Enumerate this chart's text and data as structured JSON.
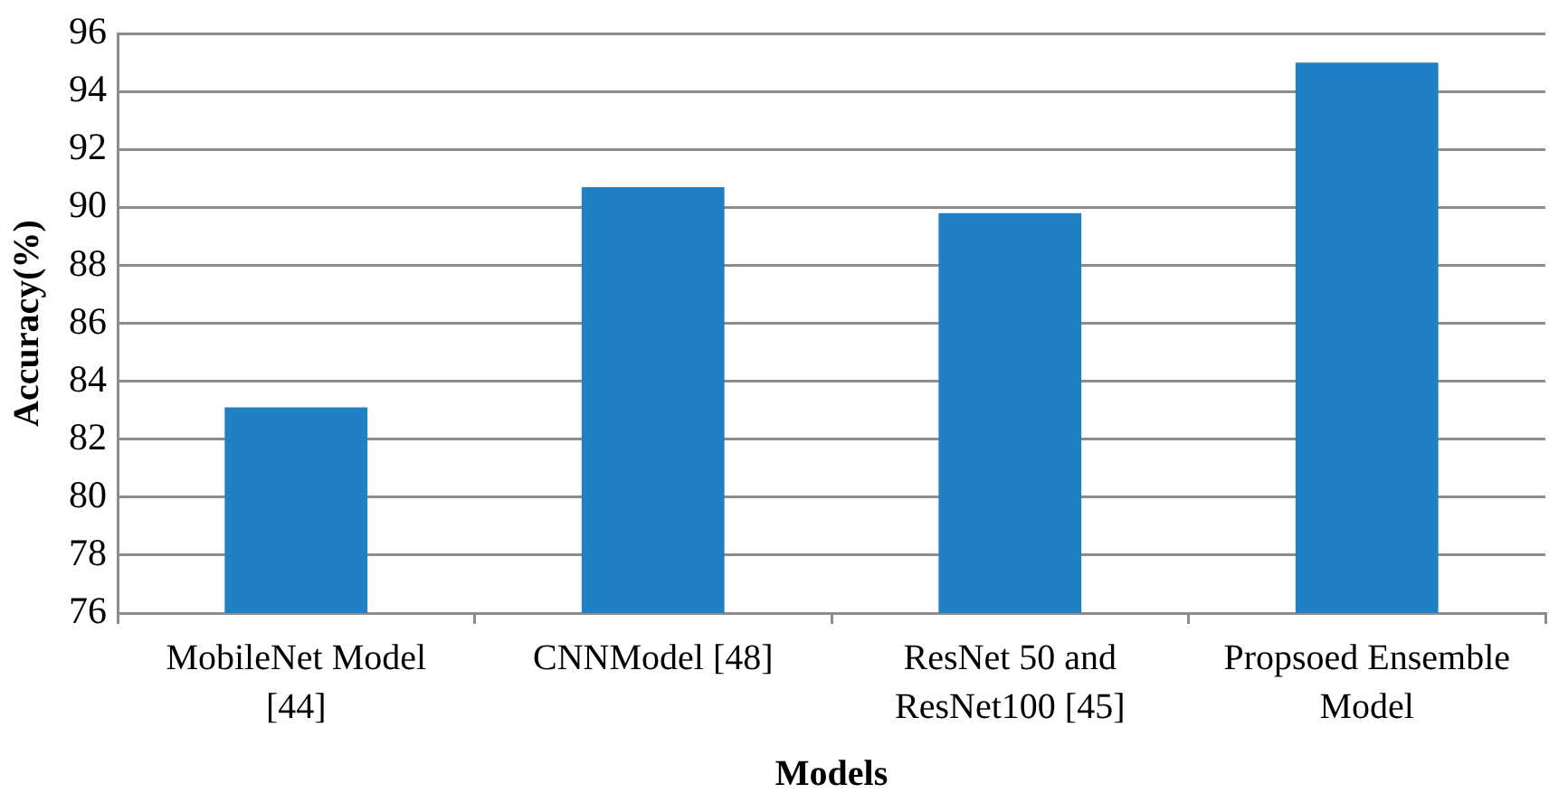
{
  "chart_data": {
    "type": "bar",
    "xlabel": "Models",
    "ylabel": "Accuracy(%)",
    "categories": [
      "MobileNet Model [44]",
      "CNNModel [48]",
      "ResNet 50 and ResNet100 [45]",
      "Propsoed Ensemble Model"
    ],
    "values": [
      83.1,
      90.7,
      89.8,
      95.0
    ],
    "color": "#1f80c3",
    "ylim": [
      76,
      96
    ],
    "yticks": [
      76,
      78,
      80,
      82,
      84,
      86,
      88,
      90,
      92,
      94,
      96
    ],
    "grid": "y"
  }
}
